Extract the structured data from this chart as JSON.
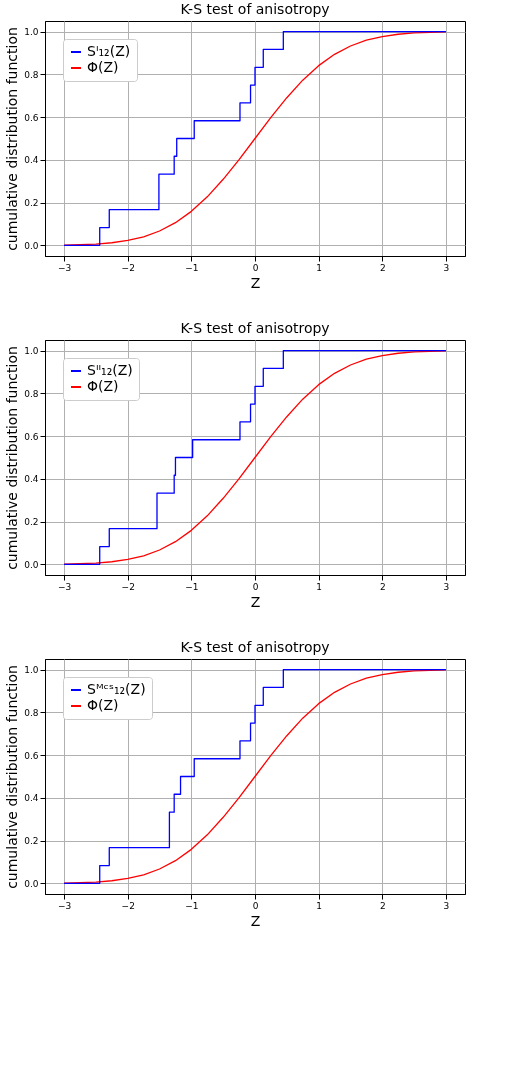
{
  "chart_data": [
    {
      "type": "line",
      "title": "K-S test of anisotropy",
      "xlabel": "Z",
      "ylabel": "cumulative distribution function",
      "xlim": [
        -3.3,
        3.3
      ],
      "ylim": [
        -0.05,
        1.05
      ],
      "xticks": [
        -3,
        -2,
        -1,
        0,
        1,
        2,
        3
      ],
      "yticks": [
        {
          "value": 0,
          "label": "0.0"
        },
        {
          "value": 0.2,
          "label": "0.2"
        },
        {
          "value": 0.4,
          "label": "0.4"
        },
        {
          "value": 0.6,
          "label": "0.6"
        },
        {
          "value": 0.8,
          "label": "0.8"
        },
        {
          "value": 1,
          "label": "1.0"
        }
      ],
      "grid": true,
      "legend": "top left",
      "series": [
        {
          "name": "Sᴵ₁₂(Z)",
          "type": "step",
          "color": "#0000ff",
          "x": [
            -3,
            -2.44,
            -2.29,
            -1.51,
            -1.27,
            -1.23,
            -0.955,
            -0.236,
            -0.07,
            0.0,
            0.13,
            0.445,
            3
          ],
          "values": [
            0,
            0.083,
            0.167,
            0.333,
            0.417,
            0.5,
            0.583,
            0.667,
            0.75,
            0.833,
            0.917,
            1,
            1
          ]
        },
        {
          "name": "Φ(Z)",
          "type": "line",
          "color": "#ff0000",
          "x": [
            -3,
            -2.75,
            -2.5,
            -2.25,
            -2,
            -1.75,
            -1.5,
            -1.25,
            -1,
            -0.75,
            -0.5,
            -0.25,
            0,
            0.25,
            0.5,
            0.75,
            1,
            1.25,
            1.5,
            1.75,
            2,
            2.25,
            2.5,
            2.75,
            3
          ],
          "values": [
            0.001,
            0.003,
            0.006,
            0.012,
            0.023,
            0.04,
            0.067,
            0.106,
            0.159,
            0.227,
            0.309,
            0.401,
            0.5,
            0.599,
            0.691,
            0.773,
            0.841,
            0.894,
            0.933,
            0.96,
            0.977,
            0.988,
            0.994,
            0.997,
            0.999
          ]
        }
      ]
    },
    {
      "type": "line",
      "title": "K-S test of anisotropy",
      "xlabel": "Z",
      "ylabel": "cumulative distribution function",
      "xlim": [
        -3.3,
        3.3
      ],
      "ylim": [
        -0.05,
        1.05
      ],
      "xticks": [
        -3,
        -2,
        -1,
        0,
        1,
        2,
        3
      ],
      "yticks": [
        {
          "value": 0,
          "label": "0.0"
        },
        {
          "value": 0.2,
          "label": "0.2"
        },
        {
          "value": 0.4,
          "label": "0.4"
        },
        {
          "value": 0.6,
          "label": "0.6"
        },
        {
          "value": 0.8,
          "label": "0.8"
        },
        {
          "value": 1,
          "label": "1.0"
        }
      ],
      "grid": true,
      "legend": "top left",
      "series": [
        {
          "name": "Sᴵᴵ₁₂(Z)",
          "type": "step",
          "color": "#0000ff",
          "x": [
            -3,
            -2.44,
            -2.29,
            -1.54,
            -1.27,
            -1.25,
            -0.98,
            -0.236,
            -0.07,
            0.0,
            0.13,
            0.445,
            3
          ],
          "values": [
            0,
            0.083,
            0.167,
            0.333,
            0.417,
            0.5,
            0.583,
            0.667,
            0.75,
            0.833,
            0.917,
            1,
            1
          ]
        },
        {
          "name": "Φ(Z)",
          "type": "line",
          "color": "#ff0000",
          "x": [
            -3,
            -2.75,
            -2.5,
            -2.25,
            -2,
            -1.75,
            -1.5,
            -1.25,
            -1,
            -0.75,
            -0.5,
            -0.25,
            0,
            0.25,
            0.5,
            0.75,
            1,
            1.25,
            1.5,
            1.75,
            2,
            2.25,
            2.5,
            2.75,
            3
          ],
          "values": [
            0.001,
            0.003,
            0.006,
            0.012,
            0.023,
            0.04,
            0.067,
            0.106,
            0.159,
            0.227,
            0.309,
            0.401,
            0.5,
            0.599,
            0.691,
            0.773,
            0.841,
            0.894,
            0.933,
            0.96,
            0.977,
            0.988,
            0.994,
            0.997,
            0.999
          ]
        }
      ]
    },
    {
      "type": "line",
      "title": "K-S test of anisotropy",
      "xlabel": "Z",
      "ylabel": "cumulative distribution function",
      "xlim": [
        -3.3,
        3.3
      ],
      "ylim": [
        -0.05,
        1.05
      ],
      "xticks": [
        -3,
        -2,
        -1,
        0,
        1,
        2,
        3
      ],
      "yticks": [
        {
          "value": 0,
          "label": "0.0"
        },
        {
          "value": 0.2,
          "label": "0.2"
        },
        {
          "value": 0.4,
          "label": "0.4"
        },
        {
          "value": 0.6,
          "label": "0.6"
        },
        {
          "value": 0.8,
          "label": "0.8"
        },
        {
          "value": 1,
          "label": "1.0"
        }
      ],
      "grid": true,
      "legend": "top left",
      "series": [
        {
          "name": "Sᴹᶜˢ₁₂(Z)",
          "type": "step",
          "color": "#0000ff",
          "x": [
            -3,
            -2.44,
            -2.29,
            -1.345,
            -1.27,
            -1.17,
            -0.955,
            -0.236,
            -0.07,
            0.0,
            0.13,
            0.445,
            3
          ],
          "values": [
            0,
            0.083,
            0.167,
            0.333,
            0.417,
            0.5,
            0.583,
            0.667,
            0.75,
            0.833,
            0.917,
            1,
            1
          ]
        },
        {
          "name": "Φ(Z)",
          "type": "line",
          "color": "#ff0000",
          "x": [
            -3,
            -2.75,
            -2.5,
            -2.25,
            -2,
            -1.75,
            -1.5,
            -1.25,
            -1,
            -0.75,
            -0.5,
            -0.25,
            0,
            0.25,
            0.5,
            0.75,
            1,
            1.25,
            1.5,
            1.75,
            2,
            2.25,
            2.5,
            2.75,
            3
          ],
          "values": [
            0.001,
            0.003,
            0.006,
            0.012,
            0.023,
            0.04,
            0.067,
            0.106,
            0.159,
            0.227,
            0.309,
            0.401,
            0.5,
            0.599,
            0.691,
            0.773,
            0.841,
            0.894,
            0.933,
            0.96,
            0.977,
            0.988,
            0.994,
            0.997,
            0.999
          ]
        }
      ]
    }
  ]
}
